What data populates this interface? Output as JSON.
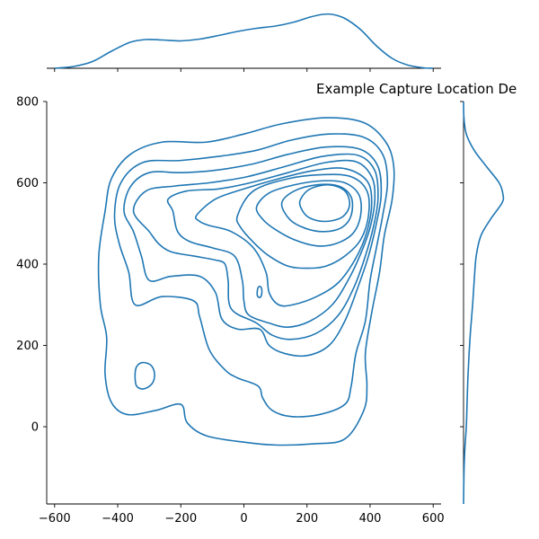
{
  "chart_data": {
    "type": "kde_joint",
    "title": "Example Capture Location De",
    "xlabel": "",
    "ylabel": "",
    "xlim": [
      -625,
      625
    ],
    "ylim": [
      -190,
      800
    ],
    "x_ticks": [
      -600,
      -400,
      -200,
      0,
      200,
      400,
      600
    ],
    "y_ticks": [
      0,
      200,
      400,
      600,
      800
    ],
    "grid": false,
    "color": "#1f77b4",
    "x_marginal_density": [
      {
        "x": -600,
        "d": 0.0
      },
      {
        "x": -540,
        "d": 0.04
      },
      {
        "x": -480,
        "d": 0.15
      },
      {
        "x": -420,
        "d": 0.38
      },
      {
        "x": -360,
        "d": 0.58
      },
      {
        "x": -310,
        "d": 0.64
      },
      {
        "x": -260,
        "d": 0.63
      },
      {
        "x": -200,
        "d": 0.61
      },
      {
        "x": -140,
        "d": 0.65
      },
      {
        "x": -80,
        "d": 0.73
      },
      {
        "x": -20,
        "d": 0.82
      },
      {
        "x": 40,
        "d": 0.89
      },
      {
        "x": 100,
        "d": 0.94
      },
      {
        "x": 160,
        "d": 1.03
      },
      {
        "x": 210,
        "d": 1.14
      },
      {
        "x": 250,
        "d": 1.2
      },
      {
        "x": 280,
        "d": 1.2
      },
      {
        "x": 320,
        "d": 1.11
      },
      {
        "x": 370,
        "d": 0.86
      },
      {
        "x": 420,
        "d": 0.5
      },
      {
        "x": 470,
        "d": 0.22
      },
      {
        "x": 520,
        "d": 0.07
      },
      {
        "x": 570,
        "d": 0.01
      },
      {
        "x": 600,
        "d": 0.0
      }
    ],
    "y_marginal_density": [
      {
        "y": -190,
        "d": 0.0
      },
      {
        "y": -120,
        "d": 0.01
      },
      {
        "y": -60,
        "d": 0.03
      },
      {
        "y": 0,
        "d": 0.07
      },
      {
        "y": 60,
        "d": 0.09
      },
      {
        "y": 120,
        "d": 0.11
      },
      {
        "y": 180,
        "d": 0.14
      },
      {
        "y": 240,
        "d": 0.18
      },
      {
        "y": 300,
        "d": 0.23
      },
      {
        "y": 360,
        "d": 0.27
      },
      {
        "y": 420,
        "d": 0.32
      },
      {
        "y": 470,
        "d": 0.44
      },
      {
        "y": 510,
        "d": 0.68
      },
      {
        "y": 550,
        "d": 0.97
      },
      {
        "y": 570,
        "d": 1.0
      },
      {
        "y": 600,
        "d": 0.9
      },
      {
        "y": 640,
        "d": 0.58
      },
      {
        "y": 680,
        "d": 0.27
      },
      {
        "y": 720,
        "d": 0.07
      },
      {
        "y": 760,
        "d": 0.01
      },
      {
        "y": 800,
        "d": 0.0
      }
    ],
    "contours": [
      {
        "level": 1,
        "closed": true,
        "points": [
          [
            -440,
            530
          ],
          [
            -420,
            610
          ],
          [
            -360,
            670
          ],
          [
            -260,
            700
          ],
          [
            -120,
            700
          ],
          [
            0,
            720
          ],
          [
            120,
            745
          ],
          [
            260,
            760
          ],
          [
            380,
            748
          ],
          [
            450,
            700
          ],
          [
            475,
            640
          ],
          [
            470,
            560
          ],
          [
            445,
            470
          ],
          [
            430,
            380
          ],
          [
            405,
            280
          ],
          [
            385,
            180
          ],
          [
            390,
            100
          ],
          [
            380,
            40
          ],
          [
            320,
            -30
          ],
          [
            220,
            -42
          ],
          [
            100,
            -45
          ],
          [
            0,
            -38
          ],
          [
            -120,
            -22
          ],
          [
            -180,
            10
          ],
          [
            -200,
            55
          ],
          [
            -280,
            40
          ],
          [
            -370,
            30
          ],
          [
            -420,
            60
          ],
          [
            -440,
            130
          ],
          [
            -435,
            220
          ],
          [
            -455,
            300
          ],
          [
            -460,
            420
          ]
        ]
      },
      {
        "level": 2,
        "closed": true,
        "points": [
          [
            -410,
            520
          ],
          [
            -390,
            600
          ],
          [
            -320,
            650
          ],
          [
            -200,
            655
          ],
          [
            -80,
            665
          ],
          [
            40,
            680
          ],
          [
            150,
            705
          ],
          [
            270,
            720
          ],
          [
            380,
            712
          ],
          [
            440,
            670
          ],
          [
            455,
            600
          ],
          [
            440,
            520
          ],
          [
            420,
            440
          ],
          [
            400,
            360
          ],
          [
            385,
            260
          ],
          [
            355,
            180
          ],
          [
            340,
            100
          ],
          [
            320,
            55
          ],
          [
            240,
            30
          ],
          [
            150,
            25
          ],
          [
            90,
            40
          ],
          [
            60,
            70
          ],
          [
            45,
            100
          ],
          [
            -20,
            120
          ],
          [
            -60,
            140
          ],
          [
            -110,
            190
          ],
          [
            -140,
            270
          ],
          [
            -160,
            310
          ],
          [
            -260,
            320
          ],
          [
            -345,
            300
          ],
          [
            -365,
            380
          ],
          [
            -395,
            450
          ]
        ]
      },
      {
        "level": 3,
        "closed": true,
        "points": [
          [
            -380,
            530
          ],
          [
            -360,
            590
          ],
          [
            -300,
            625
          ],
          [
            -200,
            625
          ],
          [
            -100,
            630
          ],
          [
            20,
            645
          ],
          [
            140,
            670
          ],
          [
            260,
            688
          ],
          [
            370,
            682
          ],
          [
            425,
            640
          ],
          [
            435,
            570
          ],
          [
            420,
            500
          ],
          [
            395,
            420
          ],
          [
            360,
            340
          ],
          [
            320,
            260
          ],
          [
            270,
            200
          ],
          [
            200,
            175
          ],
          [
            130,
            180
          ],
          [
            80,
            200
          ],
          [
            50,
            240
          ],
          [
            -20,
            240
          ],
          [
            -70,
            265
          ],
          [
            -90,
            330
          ],
          [
            -140,
            370
          ],
          [
            -230,
            370
          ],
          [
            -300,
            360
          ],
          [
            -325,
            420
          ],
          [
            -350,
            480
          ]
        ]
      },
      {
        "level": 4,
        "closed": true,
        "points": [
          [
            -350,
            530
          ],
          [
            -310,
            580
          ],
          [
            -220,
            592
          ],
          [
            -110,
            600
          ],
          [
            10,
            615
          ],
          [
            130,
            640
          ],
          [
            250,
            665
          ],
          [
            360,
            668
          ],
          [
            415,
            630
          ],
          [
            425,
            560
          ],
          [
            410,
            490
          ],
          [
            385,
            420
          ],
          [
            350,
            345
          ],
          [
            300,
            275
          ],
          [
            230,
            230
          ],
          [
            150,
            215
          ],
          [
            90,
            225
          ],
          [
            40,
            255
          ],
          [
            -40,
            290
          ],
          [
            -50,
            360
          ],
          [
            -60,
            400
          ],
          [
            -90,
            410
          ],
          [
            -160,
            420
          ],
          [
            -230,
            430
          ],
          [
            -270,
            450
          ],
          [
            -300,
            480
          ]
        ]
      },
      {
        "level": 5,
        "closed": true,
        "points": [
          [
            -240,
            560
          ],
          [
            -180,
            580
          ],
          [
            -80,
            585
          ],
          [
            20,
            600
          ],
          [
            140,
            625
          ],
          [
            260,
            650
          ],
          [
            355,
            652
          ],
          [
            405,
            615
          ],
          [
            415,
            560
          ],
          [
            400,
            490
          ],
          [
            370,
            425
          ],
          [
            330,
            360
          ],
          [
            280,
            300
          ],
          [
            210,
            260
          ],
          [
            140,
            245
          ],
          [
            80,
            255
          ],
          [
            15,
            275
          ],
          [
            0,
            310
          ],
          [
            -5,
            360
          ],
          [
            -30,
            420
          ],
          [
            -100,
            440
          ],
          [
            -170,
            455
          ],
          [
            -210,
            480
          ],
          [
            -225,
            530
          ]
        ]
      },
      {
        "level": 6,
        "closed": true,
        "points": [
          [
            -150,
            520
          ],
          [
            -90,
            560
          ],
          [
            0,
            585
          ],
          [
            110,
            610
          ],
          [
            220,
            630
          ],
          [
            320,
            635
          ],
          [
            390,
            605
          ],
          [
            405,
            550
          ],
          [
            390,
            480
          ],
          [
            355,
            415
          ],
          [
            300,
            355
          ],
          [
            230,
            320
          ],
          [
            155,
            300
          ],
          [
            110,
            300
          ],
          [
            80,
            330
          ],
          [
            70,
            380
          ],
          [
            30,
            440
          ],
          [
            -40,
            480
          ],
          [
            -110,
            495
          ],
          [
            -140,
            505
          ]
        ]
      },
      {
        "level": 7,
        "closed": true,
        "points": [
          [
            -20,
            520
          ],
          [
            30,
            580
          ],
          [
            140,
            610
          ],
          [
            250,
            620
          ],
          [
            340,
            615
          ],
          [
            390,
            580
          ],
          [
            395,
            520
          ],
          [
            370,
            460
          ],
          [
            320,
            420
          ],
          [
            260,
            395
          ],
          [
            200,
            390
          ],
          [
            140,
            395
          ],
          [
            80,
            420
          ],
          [
            35,
            450
          ],
          [
            -10,
            490
          ]
        ]
      },
      {
        "level": 8,
        "closed": true,
        "points": [
          [
            40,
            540
          ],
          [
            80,
            575
          ],
          [
            160,
            595
          ],
          [
            250,
            605
          ],
          [
            320,
            600
          ],
          [
            365,
            570
          ],
          [
            370,
            520
          ],
          [
            345,
            475
          ],
          [
            290,
            450
          ],
          [
            230,
            445
          ],
          [
            160,
            460
          ],
          [
            100,
            485
          ],
          [
            60,
            510
          ]
        ]
      },
      {
        "level": 9,
        "closed": true,
        "points": [
          [
            120,
            550
          ],
          [
            160,
            580
          ],
          [
            230,
            595
          ],
          [
            300,
            592
          ],
          [
            340,
            565
          ],
          [
            340,
            520
          ],
          [
            310,
            490
          ],
          [
            255,
            480
          ],
          [
            195,
            488
          ],
          [
            145,
            510
          ]
        ]
      },
      {
        "level": 10,
        "closed": true,
        "points": [
          [
            180,
            560
          ],
          [
            210,
            585
          ],
          [
            270,
            595
          ],
          [
            320,
            580
          ],
          [
            335,
            545
          ],
          [
            310,
            515
          ],
          [
            255,
            505
          ],
          [
            205,
            515
          ],
          [
            180,
            540
          ]
        ]
      },
      {
        "level": 3,
        "closed": true,
        "points": [
          [
            -345,
            125
          ],
          [
            -340,
            148
          ],
          [
            -320,
            158
          ],
          [
            -293,
            150
          ],
          [
            -283,
            128
          ],
          [
            -292,
            105
          ],
          [
            -318,
            93
          ],
          [
            -340,
            100
          ]
        ]
      },
      {
        "level": 6,
        "closed": true,
        "points": [
          [
            42,
            330
          ],
          [
            45,
            342
          ],
          [
            52,
            345
          ],
          [
            57,
            336
          ],
          [
            55,
            322
          ],
          [
            49,
            318
          ],
          [
            43,
            322
          ]
        ]
      }
    ]
  }
}
